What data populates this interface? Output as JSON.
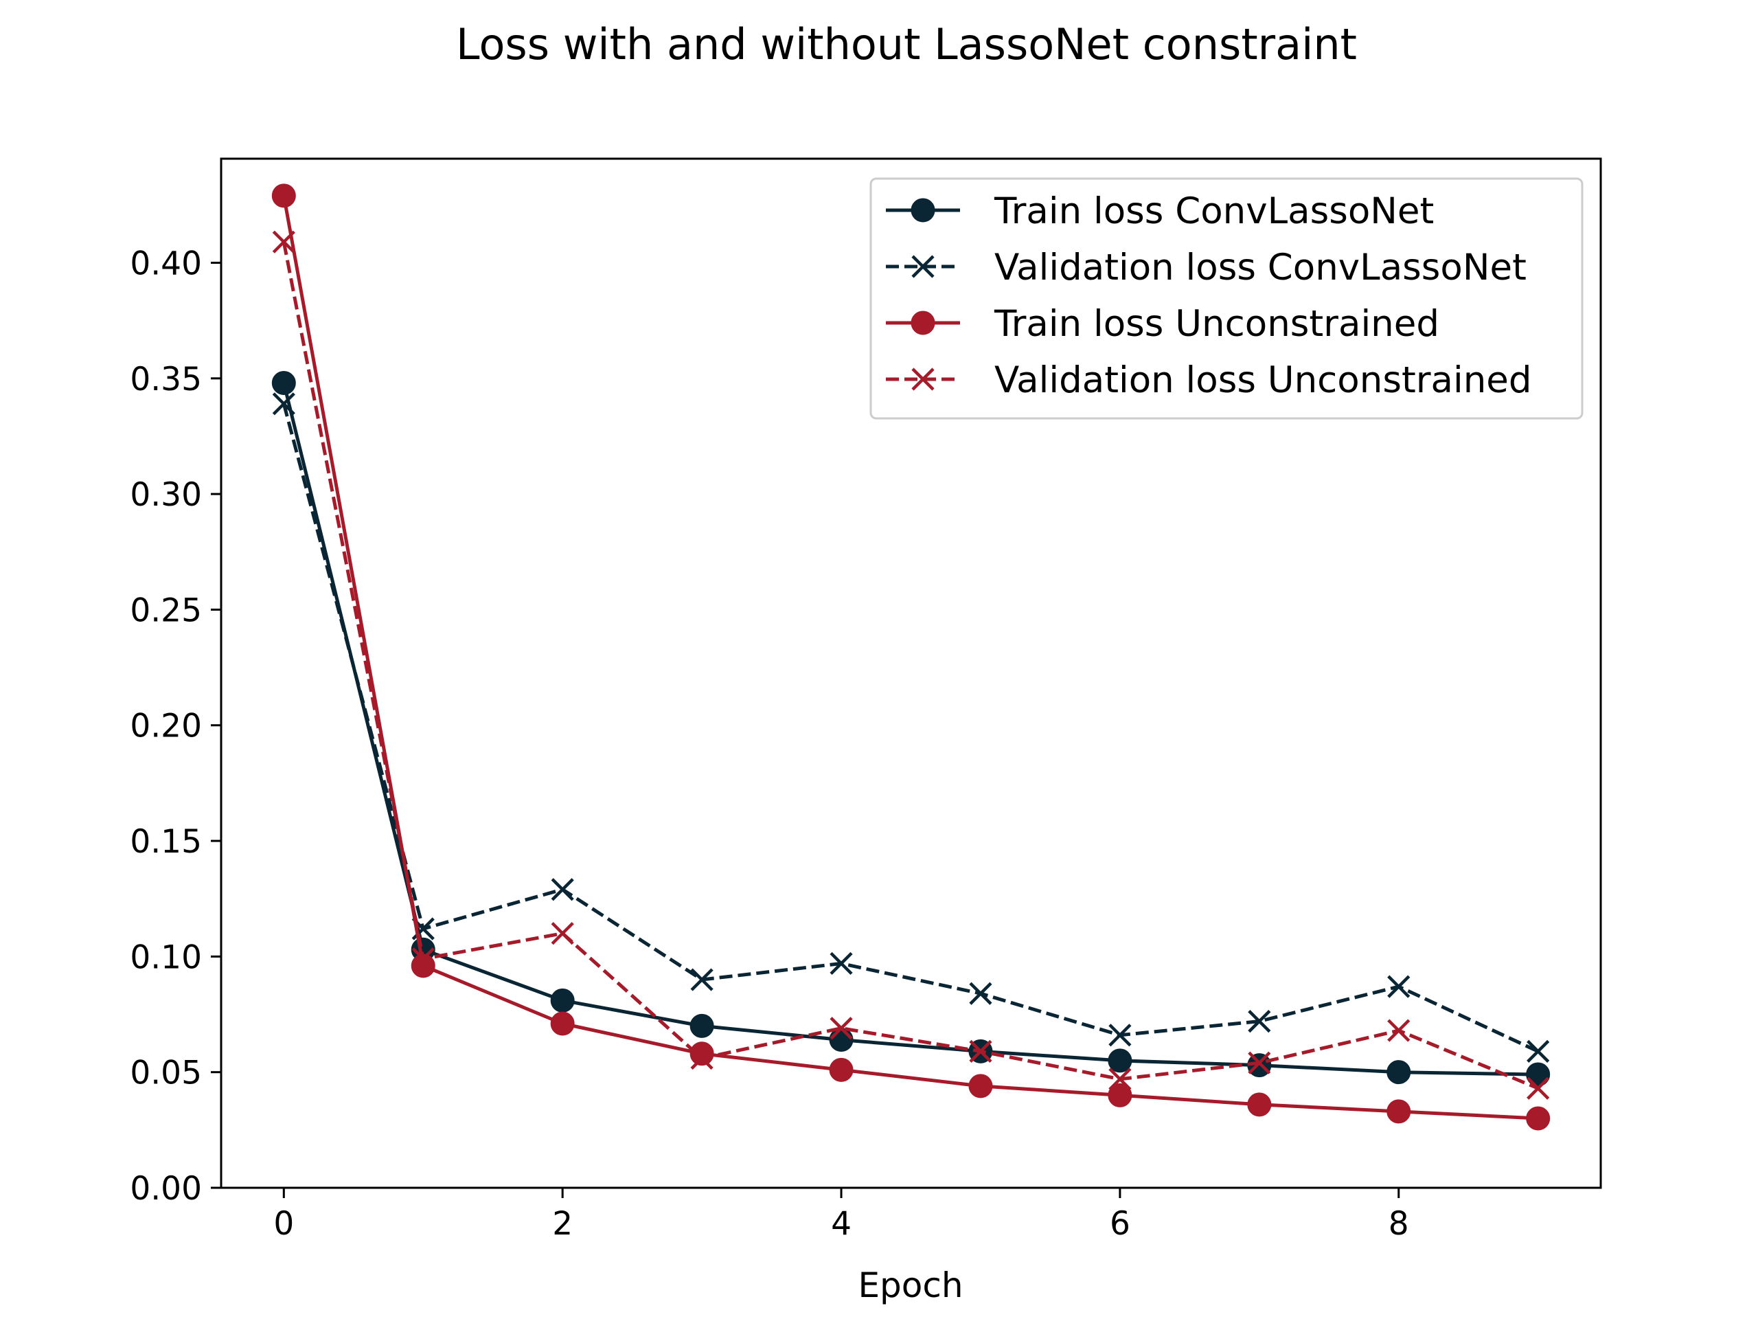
{
  "chart_data": {
    "type": "line",
    "title": "Loss with and without LassoNet constraint",
    "xlabel": "Epoch",
    "ylabel": "",
    "xlim": [
      -0.45,
      9.45
    ],
    "ylim": [
      0,
      0.445
    ],
    "x": [
      0,
      1,
      2,
      3,
      4,
      5,
      6,
      7,
      8,
      9
    ],
    "xticks": [
      0,
      2,
      4,
      6,
      8
    ],
    "yticks": [
      0.0,
      0.05,
      0.1,
      0.15,
      0.2,
      0.25,
      0.3,
      0.35,
      0.4
    ],
    "xtick_labels": [
      "0",
      "2",
      "4",
      "6",
      "8"
    ],
    "ytick_labels": [
      "0.00",
      "0.05",
      "0.10",
      "0.15",
      "0.20",
      "0.25",
      "0.30",
      "0.35",
      "0.40"
    ],
    "grid": false,
    "legend_position": "upper-right",
    "series": [
      {
        "name": "Train loss ConvLassoNet",
        "color": "#0a2533",
        "line_style": "solid",
        "marker": "circle",
        "values": [
          0.348,
          0.103,
          0.081,
          0.07,
          0.064,
          0.059,
          0.055,
          0.053,
          0.05,
          0.049
        ]
      },
      {
        "name": "Validation loss ConvLassoNet",
        "color": "#0a2533",
        "line_style": "dashed",
        "marker": "x",
        "values": [
          0.339,
          0.112,
          0.129,
          0.09,
          0.097,
          0.084,
          0.066,
          0.072,
          0.087,
          0.059
        ]
      },
      {
        "name": "Train loss Unconstrained",
        "color": "#a61a2a",
        "line_style": "solid",
        "marker": "circle",
        "values": [
          0.429,
          0.096,
          0.071,
          0.058,
          0.051,
          0.044,
          0.04,
          0.036,
          0.033,
          0.03
        ]
      },
      {
        "name": "Validation loss Unconstrained",
        "color": "#a61a2a",
        "line_style": "dashed",
        "marker": "x",
        "values": [
          0.409,
          0.099,
          0.11,
          0.056,
          0.069,
          0.059,
          0.047,
          0.054,
          0.068,
          0.043
        ]
      }
    ]
  }
}
